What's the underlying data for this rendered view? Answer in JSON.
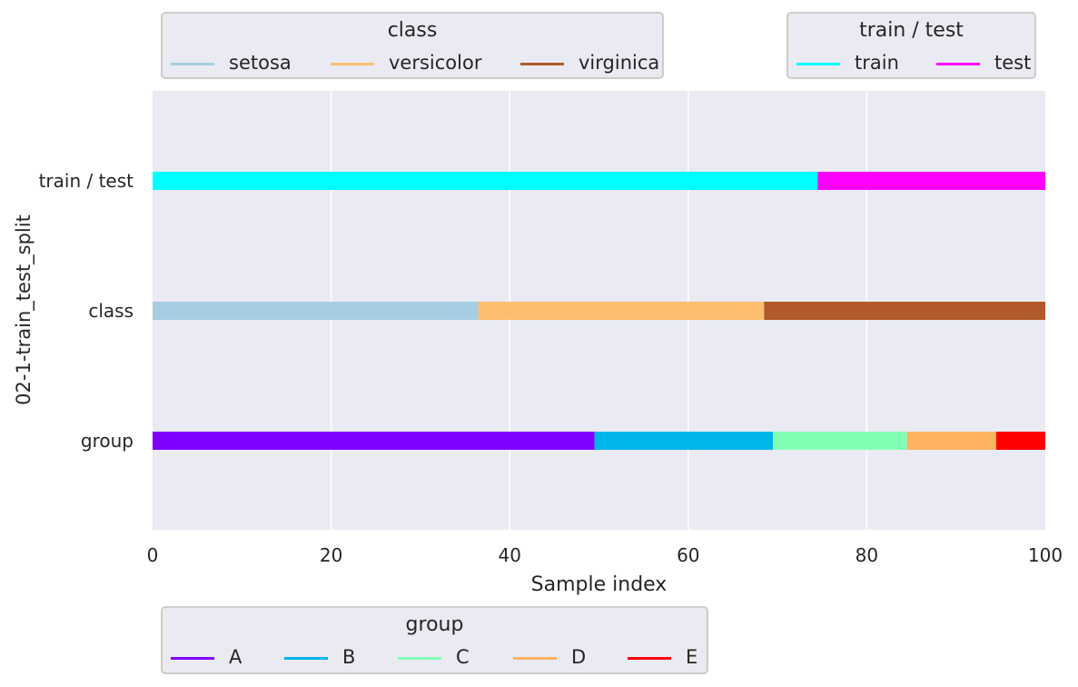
{
  "chart_data": {
    "type": "bar",
    "orientation": "horizontal",
    "ylabel": "02-1-train_test_split",
    "xlabel": "Sample index",
    "xlim": [
      0,
      100
    ],
    "x_ticks": [
      0,
      20,
      40,
      60,
      80,
      100
    ],
    "grid": true,
    "rows": [
      {
        "name": "train / test",
        "segments": [
          {
            "label": "train",
            "start": 0,
            "end": 74.5,
            "color": "#00ffff"
          },
          {
            "label": "test",
            "start": 74.5,
            "end": 100,
            "color": "#ff00ff"
          }
        ]
      },
      {
        "name": "class",
        "segments": [
          {
            "label": "setosa",
            "start": 0,
            "end": 36.5,
            "color": "#a6cee3"
          },
          {
            "label": "versicolor",
            "start": 36.5,
            "end": 68.5,
            "color": "#fdbf6f"
          },
          {
            "label": "virginica",
            "start": 68.5,
            "end": 100,
            "color": "#b15928"
          }
        ]
      },
      {
        "name": "group",
        "segments": [
          {
            "label": "A",
            "start": 0,
            "end": 49.5,
            "color": "#8000ff"
          },
          {
            "label": "B",
            "start": 49.5,
            "end": 69.5,
            "color": "#00b5eb"
          },
          {
            "label": "C",
            "start": 69.5,
            "end": 84.5,
            "color": "#80ffb4"
          },
          {
            "label": "D",
            "start": 84.5,
            "end": 94.5,
            "color": "#ffb360"
          },
          {
            "label": "E",
            "start": 94.5,
            "end": 100,
            "color": "#ff0000"
          }
        ]
      }
    ],
    "legends": {
      "class": {
        "title": "class",
        "placement": "top-left",
        "entries": [
          {
            "label": "setosa",
            "color": "#a6cee3"
          },
          {
            "label": "versicolor",
            "color": "#fdbf6f"
          },
          {
            "label": "virginica",
            "color": "#b15928"
          }
        ]
      },
      "split": {
        "title": "train / test",
        "placement": "top-right",
        "entries": [
          {
            "label": "train",
            "color": "#00ffff"
          },
          {
            "label": "test",
            "color": "#ff00ff"
          }
        ]
      },
      "group": {
        "title": "group",
        "placement": "bottom-left",
        "entries": [
          {
            "label": "A",
            "color": "#8000ff"
          },
          {
            "label": "B",
            "color": "#00b5eb"
          },
          {
            "label": "C",
            "color": "#80ffb4"
          },
          {
            "label": "D",
            "color": "#ffb360"
          },
          {
            "label": "E",
            "color": "#ff0000"
          }
        ]
      }
    }
  }
}
